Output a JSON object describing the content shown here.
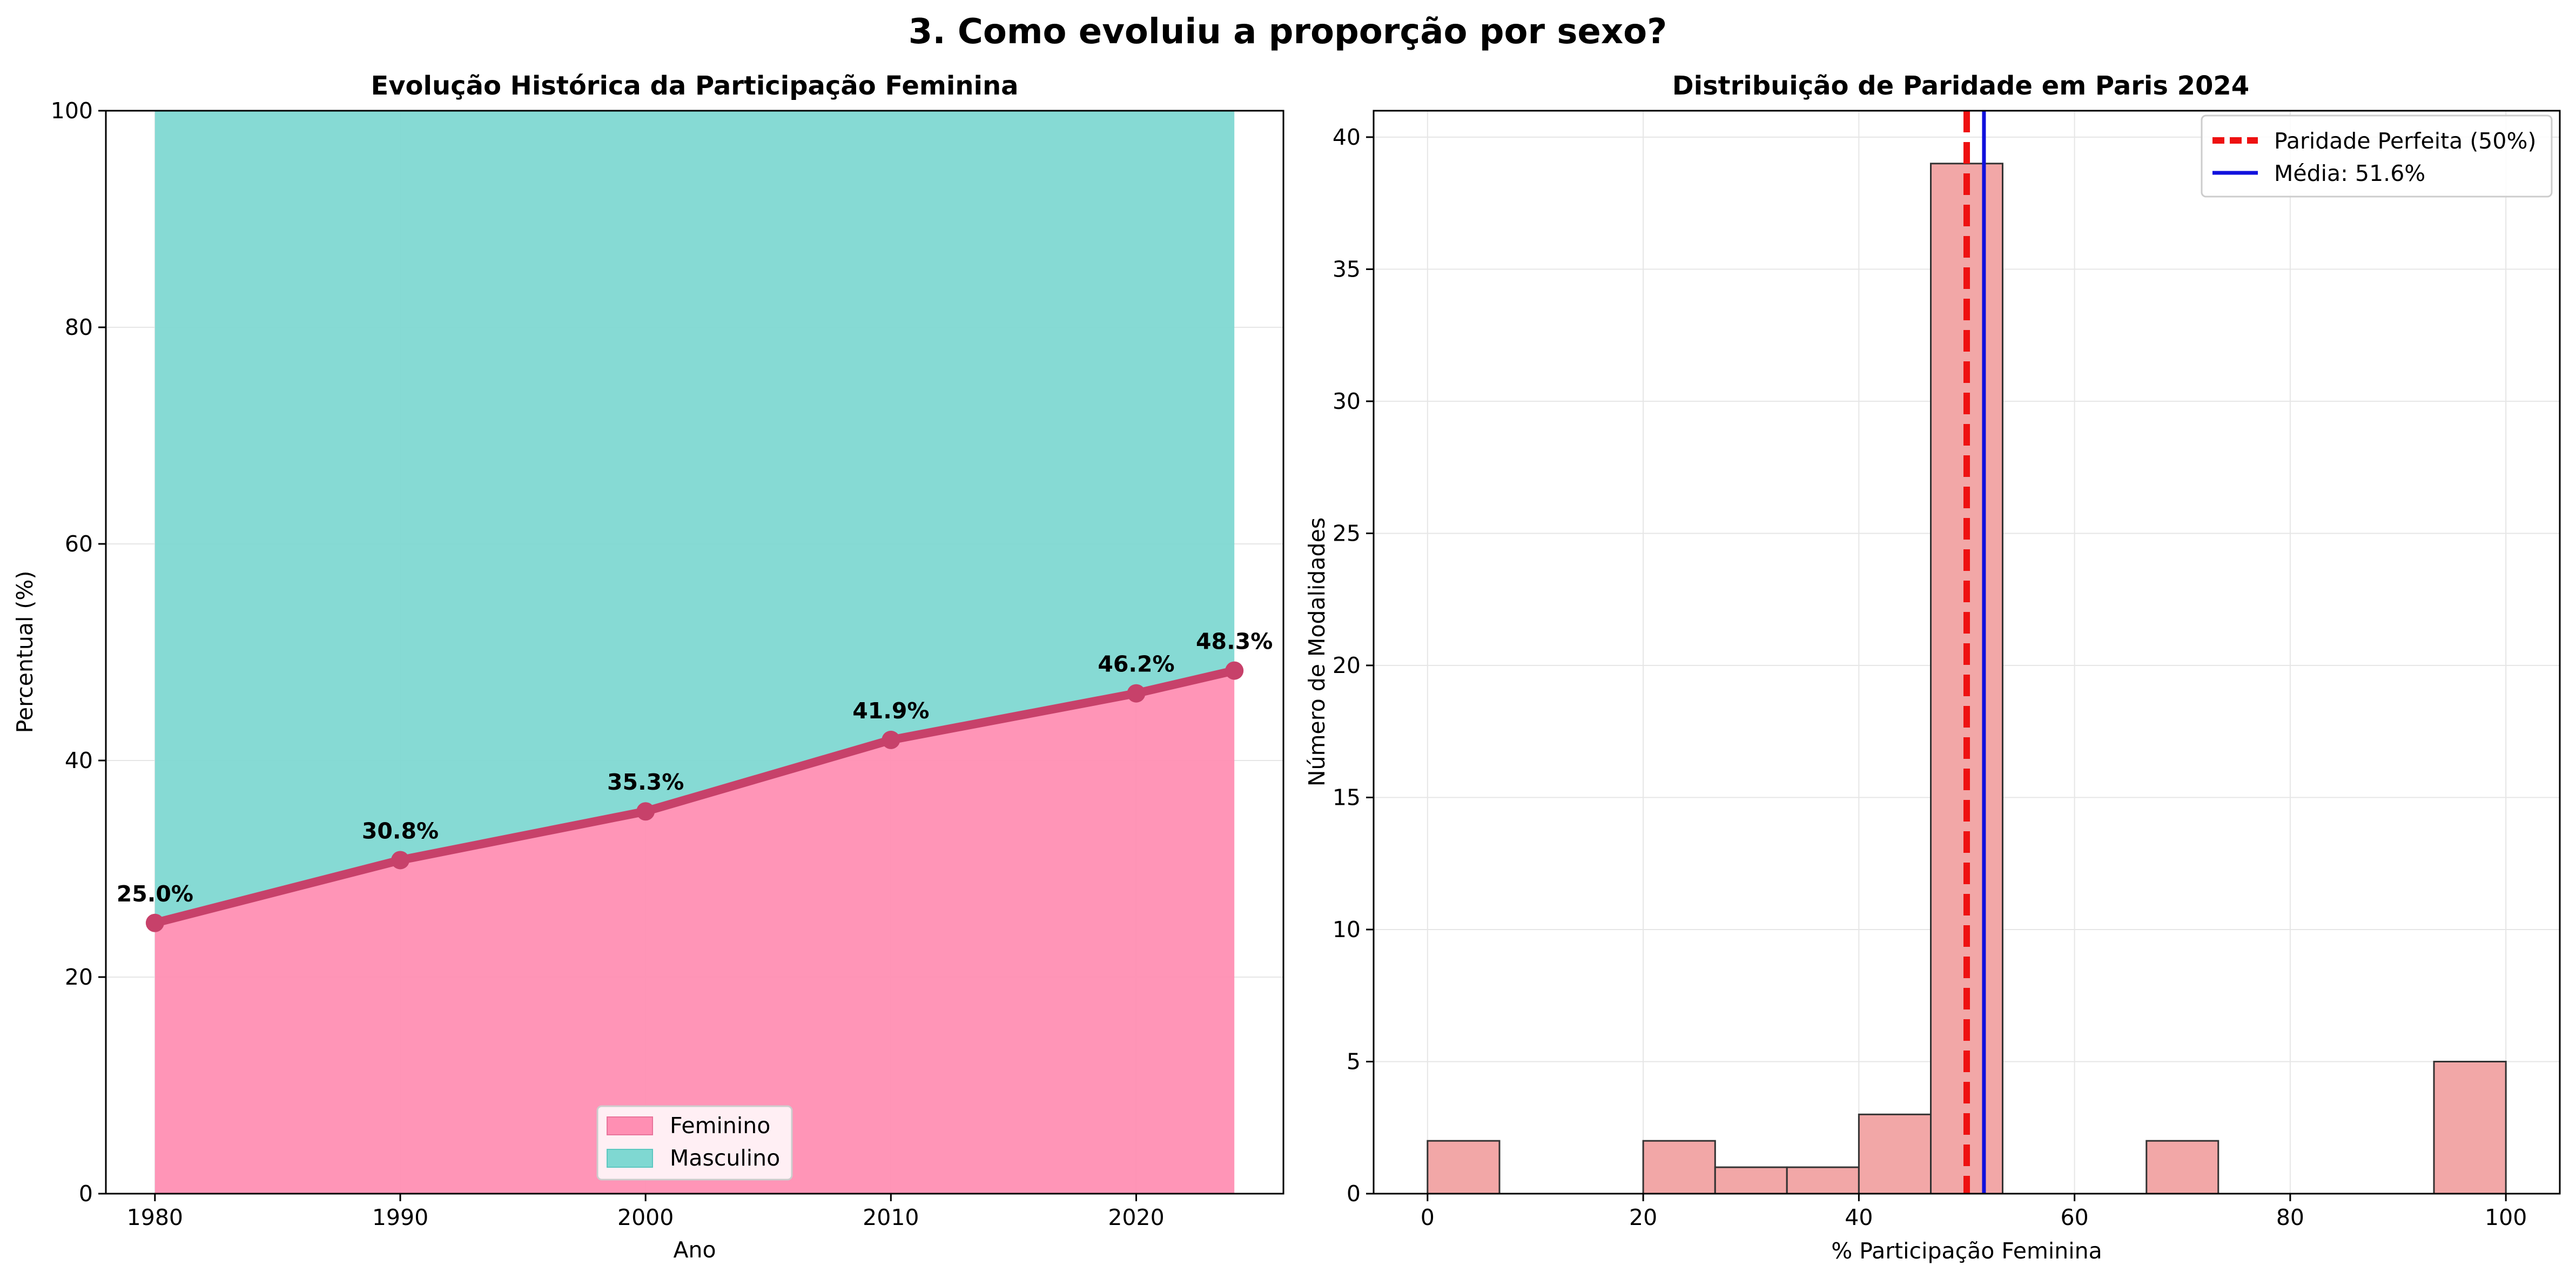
{
  "suptitle": "3. Como evoluiu a proporção por sexo?",
  "chart_data": [
    {
      "type": "area",
      "title": "Evolução Histórica da Participação Feminina",
      "xlabel": "Ano",
      "ylabel": "Percentual (%)",
      "xlim": [
        1978,
        2026
      ],
      "ylim": [
        0,
        100
      ],
      "xticks": [
        "1980",
        "1990",
        "2000",
        "2010",
        "2020"
      ],
      "yticks": [
        "0",
        "20",
        "40",
        "60",
        "80",
        "100"
      ],
      "grid": true,
      "legend_position": "lower center",
      "x": [
        1980,
        1990,
        2000,
        2010,
        2020,
        2024
      ],
      "series": [
        {
          "name": "Feminino",
          "values": [
            25.0,
            30.8,
            35.3,
            41.9,
            46.2,
            48.3
          ],
          "color": "#ff8fb3"
        },
        {
          "name": "Masculino",
          "values": [
            75.0,
            69.2,
            64.7,
            58.1,
            53.8,
            51.7
          ],
          "color": "#7fd8d2"
        }
      ],
      "line_color": "#c7416a",
      "data_labels": [
        "25.0%",
        "30.8%",
        "35.3%",
        "41.9%",
        "46.2%",
        "48.3%"
      ]
    },
    {
      "type": "bar",
      "title": "Distribuição de Paridade em Paris 2024",
      "xlabel": "% Participação Feminina",
      "ylabel": "Número de Modalidades",
      "xlim": [
        -5,
        105
      ],
      "ylim": [
        0,
        41
      ],
      "xticks": [
        "0",
        "20",
        "40",
        "60",
        "80",
        "100"
      ],
      "yticks": [
        "0",
        "5",
        "10",
        "15",
        "20",
        "25",
        "30",
        "35",
        "40"
      ],
      "grid": true,
      "legend_position": "upper right",
      "bin_edges": [
        0,
        6.67,
        13.33,
        20,
        26.67,
        33.33,
        40,
        46.67,
        53.33,
        60,
        66.67,
        73.33,
        80,
        86.67,
        93.33,
        100
      ],
      "counts": [
        2,
        0,
        0,
        2,
        1,
        1,
        3,
        39,
        0,
        0,
        2,
        0,
        0,
        0,
        5
      ],
      "bar_color": "#f2a7a7",
      "reference_lines": [
        {
          "name": "Paridade Perfeita (50%)",
          "x": 50,
          "color": "#ee1111",
          "style": "dashed"
        },
        {
          "name": "Média: 51.6%",
          "x": 51.6,
          "color": "#1111dd",
          "style": "solid"
        }
      ]
    }
  ]
}
